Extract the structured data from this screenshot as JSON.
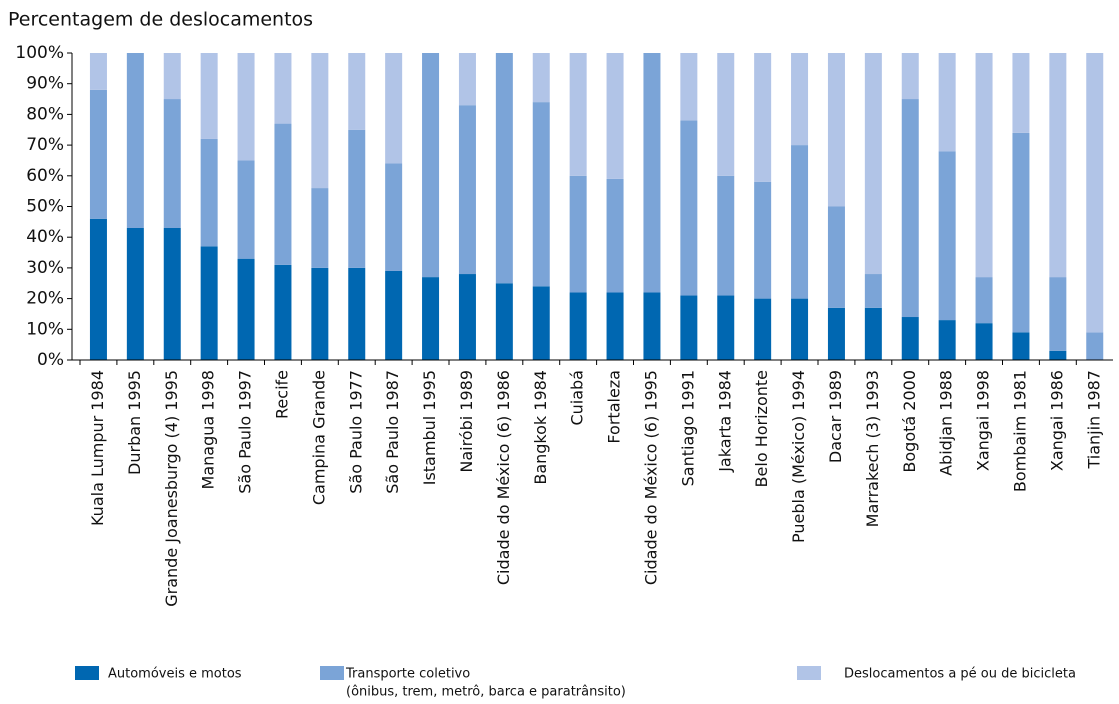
{
  "chart_data": {
    "type": "stacked_bar",
    "title": "Percentagem de deslocamentos",
    "categories": [
      "Kuala Lumpur 1984",
      "Durban 1995",
      "Grande Joanesburgo (4) 1995",
      "Managua 1998",
      "São Paulo 1997",
      "Recife",
      "Campina Grande",
      "São Paulo 1977",
      "São Paulo 1987",
      "Istambul 1995",
      "Nairóbi 1989",
      "Cidade do México (6) 1986",
      "Bangkok 1984",
      "Cuiabá",
      "Fortaleza",
      "Cidade do México (6) 1995",
      "Santiago 1991",
      "Jakarta 1984",
      "Belo Horizonte",
      "Puebla (México) 1994",
      "Dacar 1989",
      "Marrakech (3) 1993",
      "Bogotá 2000",
      "Abidjan 1988",
      "Xangai 1998",
      "Bombaim 1981",
      "Xangai 1986",
      "Tianjin 1987"
    ],
    "series": [
      {
        "name": "Automóveis e motos",
        "color": "#0067b1",
        "values": [
          46,
          43,
          43,
          37,
          33,
          31,
          30,
          30,
          29,
          27,
          28,
          25,
          24,
          22,
          22,
          22,
          21,
          21,
          20,
          20,
          17,
          17,
          14,
          13,
          12,
          9,
          3,
          0
        ]
      },
      {
        "name": "Transporte coletivo",
        "note": "(ônibus, trem, metrô, barca e paratrânsito)",
        "color": "#7ba4d7",
        "values": [
          42,
          57,
          42,
          35,
          32,
          46,
          26,
          45,
          35,
          73,
          55,
          75,
          60,
          38,
          37,
          78,
          57,
          39,
          38,
          50,
          33,
          11,
          71,
          55,
          15,
          65,
          24,
          9
        ]
      },
      {
        "name": "Deslocamentos a pé ou de bicicleta",
        "color": "#b1c4e7",
        "values": [
          12,
          0,
          15,
          28,
          35,
          23,
          44,
          25,
          36,
          0,
          17,
          0,
          16,
          40,
          41,
          0,
          22,
          40,
          42,
          30,
          50,
          72,
          15,
          32,
          73,
          26,
          73,
          91
        ]
      }
    ],
    "ylim": [
      0,
      100
    ],
    "yticks": [
      {
        "value": 0,
        "label": "0%"
      },
      {
        "value": 10,
        "label": "10%"
      },
      {
        "value": 20,
        "label": "20%"
      },
      {
        "value": 30,
        "label": "30%"
      },
      {
        "value": 40,
        "label": "40%"
      },
      {
        "value": 50,
        "label": "50%"
      },
      {
        "value": 60,
        "label": "60%"
      },
      {
        "value": 70,
        "label": "70%"
      },
      {
        "value": 80,
        "label": "80%"
      },
      {
        "value": 90,
        "label": "90%"
      },
      {
        "value": 100,
        "label": "100%"
      }
    ],
    "grid": false
  }
}
